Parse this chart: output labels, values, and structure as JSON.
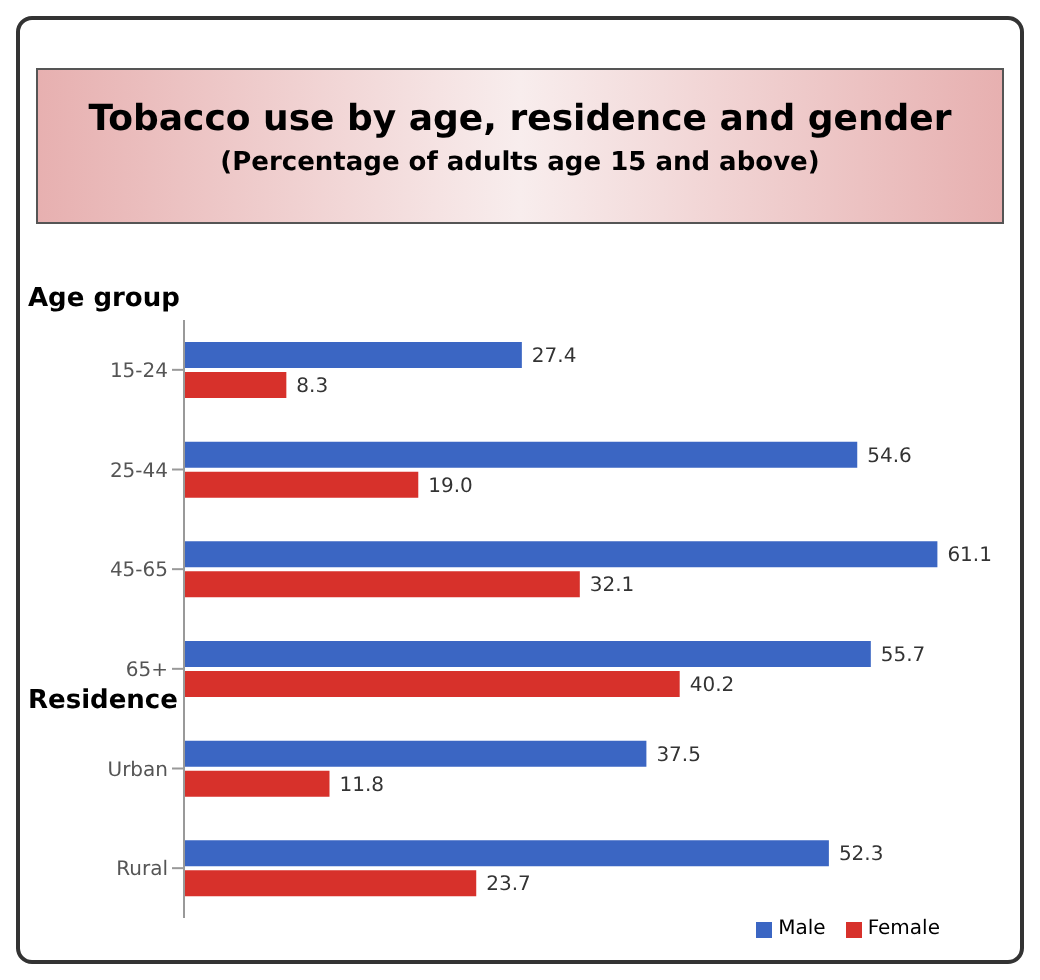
{
  "chart_data": {
    "type": "bar",
    "orientation": "horizontal",
    "title": "Tobacco use by age, residence and gender",
    "subtitle": "(Percentage of adults age 15 and above)",
    "categories": [
      "15-24",
      "25-44",
      "45-65",
      "65+",
      "Urban",
      "Rural"
    ],
    "series": [
      {
        "name": "Male",
        "color": "#3b66c3",
        "values": [
          27.4,
          54.6,
          61.1,
          55.7,
          37.5,
          52.3
        ],
        "value_labels": [
          "27.4",
          "54.6",
          "61.1",
          "55.7",
          "37.5",
          "52.3"
        ]
      },
      {
        "name": "Female",
        "color": "#d7312b",
        "values": [
          8.3,
          19.0,
          32.1,
          40.2,
          11.8,
          23.7
        ],
        "value_labels": [
          "8.3",
          "19.0",
          "32.1",
          "40.2",
          "11.8",
          "23.7"
        ]
      }
    ],
    "legend": "bottom",
    "annotations": [
      "Age group",
      "Residence"
    ]
  }
}
